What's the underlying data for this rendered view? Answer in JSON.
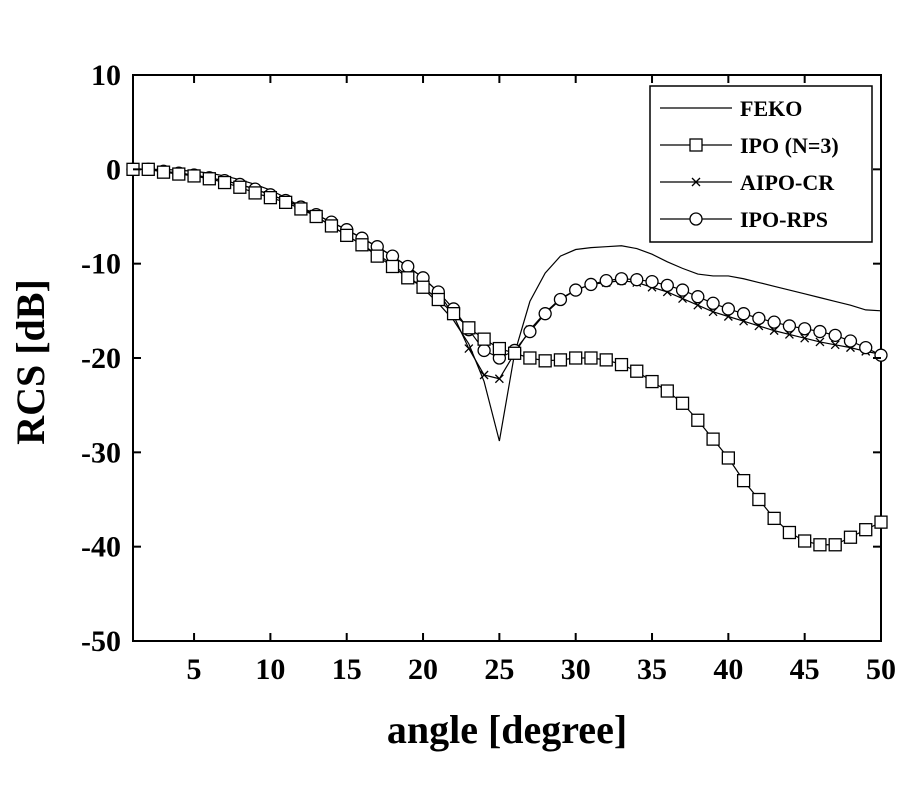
{
  "chart_data": {
    "type": "line",
    "title": "",
    "xlabel": "angle [degree]",
    "ylabel": "RCS [dB]",
    "xlim": [
      1,
      50
    ],
    "ylim": [
      -50,
      10
    ],
    "xticks": [
      5,
      10,
      15,
      20,
      25,
      30,
      35,
      40,
      45,
      50
    ],
    "yticks": [
      10,
      0,
      -10,
      -20,
      -30,
      -40,
      -50
    ],
    "grid": false,
    "legend_position": "top-right",
    "series": [
      {
        "name": "FEKO",
        "marker": "none",
        "x": [
          1,
          2,
          3,
          4,
          5,
          6,
          7,
          8,
          9,
          10,
          11,
          12,
          13,
          14,
          15,
          16,
          17,
          18,
          19,
          20,
          21,
          22,
          23,
          24,
          25,
          26,
          27,
          28,
          29,
          30,
          31,
          32,
          33,
          34,
          35,
          36,
          37,
          38,
          39,
          40,
          41,
          42,
          43,
          44,
          45,
          46,
          47,
          48,
          49,
          50
        ],
        "y": [
          0,
          0,
          0,
          -0.1,
          -0.2,
          -0.4,
          -0.7,
          -1.1,
          -1.6,
          -2.2,
          -3.0,
          -4.0,
          -5.0,
          -6.0,
          -7.0,
          -8.0,
          -9.0,
          -10.1,
          -11.3,
          -12.6,
          -14.2,
          -16.0,
          -18.5,
          -22.5,
          -28.8,
          -19.5,
          -14.0,
          -11.0,
          -9.2,
          -8.5,
          -8.3,
          -8.2,
          -8.1,
          -8.4,
          -9.0,
          -9.8,
          -10.5,
          -11.1,
          -11.3,
          -11.3,
          -11.6,
          -12.0,
          -12.4,
          -12.8,
          -13.2,
          -13.6,
          -14.0,
          -14.4,
          -14.9,
          -15.0
        ]
      },
      {
        "name": "IPO (N=3)",
        "marker": "square",
        "x": [
          1,
          2,
          3,
          4,
          5,
          6,
          7,
          8,
          9,
          10,
          11,
          12,
          13,
          14,
          15,
          16,
          17,
          18,
          19,
          20,
          21,
          22,
          23,
          24,
          25,
          26,
          27,
          28,
          29,
          30,
          31,
          32,
          33,
          34,
          35,
          36,
          37,
          38,
          39,
          40,
          41,
          42,
          43,
          44,
          45,
          46,
          47,
          48,
          49,
          50
        ],
        "y": [
          0,
          0,
          -0.3,
          -0.5,
          -0.7,
          -1.0,
          -1.4,
          -1.9,
          -2.5,
          -3.0,
          -3.5,
          -4.2,
          -5.0,
          -6.0,
          -7.0,
          -8.0,
          -9.2,
          -10.3,
          -11.5,
          -12.5,
          -13.8,
          -15.3,
          -16.8,
          -18.0,
          -19.0,
          -19.5,
          -20.0,
          -20.3,
          -20.2,
          -20.0,
          -20.0,
          -20.2,
          -20.7,
          -21.4,
          -22.5,
          -23.5,
          -24.8,
          -26.6,
          -28.6,
          -30.6,
          -33.0,
          -35.0,
          -37.0,
          -38.5,
          -39.4,
          -39.8,
          -39.8,
          -39.0,
          -38.2,
          -37.4
        ]
      },
      {
        "name": "AIPO-CR",
        "marker": "x",
        "x": [
          1,
          2,
          3,
          4,
          5,
          6,
          7,
          8,
          9,
          10,
          11,
          12,
          13,
          14,
          15,
          16,
          17,
          18,
          19,
          20,
          21,
          22,
          23,
          24,
          25,
          26,
          27,
          28,
          29,
          30,
          31,
          32,
          33,
          34,
          35,
          36,
          37,
          38,
          39,
          40,
          41,
          42,
          43,
          44,
          45,
          46,
          47,
          48,
          49,
          50
        ],
        "y": [
          0,
          0,
          -0.2,
          -0.4,
          -0.6,
          -0.9,
          -1.2,
          -1.6,
          -2.1,
          -2.7,
          -3.3,
          -4.0,
          -4.8,
          -5.6,
          -6.4,
          -7.3,
          -8.2,
          -9.2,
          -10.3,
          -11.5,
          -13.0,
          -15.5,
          -19.0,
          -21.8,
          -22.2,
          -19.5,
          -17.0,
          -15.2,
          -13.7,
          -12.8,
          -12.2,
          -12.0,
          -11.8,
          -12.0,
          -12.5,
          -13.0,
          -13.7,
          -14.4,
          -15.1,
          -15.6,
          -16.1,
          -16.6,
          -17.1,
          -17.5,
          -17.9,
          -18.3,
          -18.6,
          -18.9,
          -19.3,
          -19.6
        ]
      },
      {
        "name": "IPO-RPS",
        "marker": "circle",
        "x": [
          1,
          2,
          3,
          4,
          5,
          6,
          7,
          8,
          9,
          10,
          11,
          12,
          13,
          14,
          15,
          16,
          17,
          18,
          19,
          20,
          21,
          22,
          23,
          24,
          25,
          26,
          27,
          28,
          29,
          30,
          31,
          32,
          33,
          34,
          35,
          36,
          37,
          38,
          39,
          40,
          41,
          42,
          43,
          44,
          45,
          46,
          47,
          48,
          49,
          50
        ],
        "y": [
          0,
          0,
          -0.2,
          -0.4,
          -0.6,
          -0.9,
          -1.2,
          -1.6,
          -2.1,
          -2.7,
          -3.3,
          -4.0,
          -4.8,
          -5.6,
          -6.4,
          -7.3,
          -8.2,
          -9.2,
          -10.3,
          -11.5,
          -13.0,
          -14.8,
          -17.0,
          -19.2,
          -20.0,
          -19.2,
          -17.2,
          -15.3,
          -13.8,
          -12.8,
          -12.2,
          -11.8,
          -11.6,
          -11.7,
          -11.9,
          -12.3,
          -12.8,
          -13.5,
          -14.2,
          -14.8,
          -15.3,
          -15.8,
          -16.2,
          -16.6,
          -16.9,
          -17.2,
          -17.6,
          -18.2,
          -18.9,
          -19.7
        ]
      }
    ]
  }
}
